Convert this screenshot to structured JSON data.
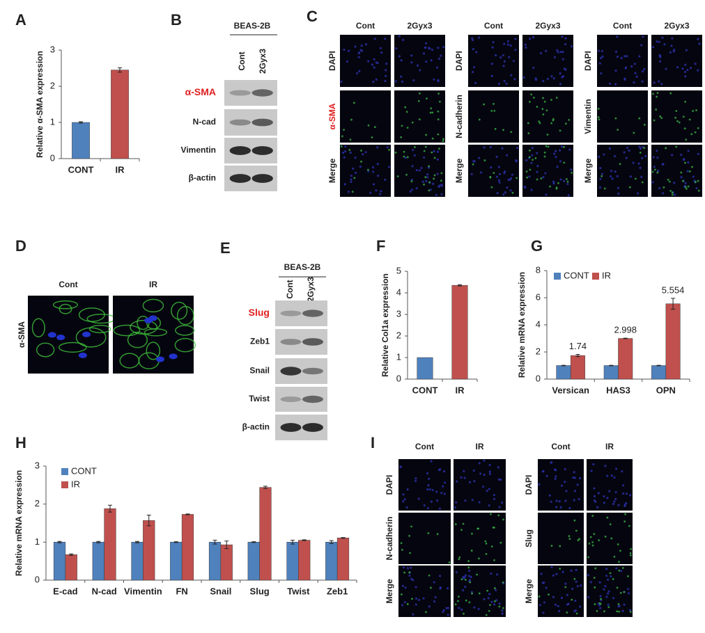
{
  "panel_labels": [
    "A",
    "B",
    "C",
    "D",
    "E",
    "F",
    "G",
    "H",
    "I"
  ],
  "chart_data": [
    {
      "type": "bar",
      "ylabel": "Relative α-SMA expression",
      "categories": [
        "CONT",
        "IR"
      ],
      "values": [
        1,
        2.45
      ],
      "errors": [
        0.02,
        0.06
      ],
      "colors": [
        "#4f81bd",
        "#c0504d"
      ],
      "ylim": [
        0,
        3
      ],
      "yticks": [
        0,
        1,
        2,
        3
      ]
    },
    {
      "type": "bar",
      "ylabel": "Relative Col1a expression",
      "categories": [
        "CONT",
        "IR"
      ],
      "values": [
        1,
        4.35
      ],
      "errors": [
        null,
        0.03
      ],
      "colors": [
        "#4f81bd",
        "#c0504d"
      ],
      "ylim": [
        0,
        5
      ],
      "yticks": [
        0,
        1,
        2,
        3,
        4,
        5
      ]
    },
    {
      "type": "bar",
      "ylabel": "Relative mRNA  expression",
      "categories": [
        "Versican",
        "HAS3",
        "OPN"
      ],
      "series": [
        {
          "name": "CONT",
          "color": "#4f81bd",
          "values": [
            1,
            1,
            1
          ],
          "errors": [
            0.02,
            0.02,
            0.02
          ]
        },
        {
          "name": "IR",
          "color": "#c0504d",
          "values": [
            1.74,
            2.998,
            5.554
          ],
          "errors": [
            0.08,
            0.02,
            0.4
          ],
          "show_values": true
        }
      ],
      "ylim": [
        0,
        8
      ],
      "yticks": [
        0,
        2,
        4,
        6,
        8
      ],
      "legend": "top-left",
      "legend_direction": "horizontal"
    },
    {
      "type": "bar",
      "ylabel": "Relative mRNA expression",
      "categories": [
        "E-cad",
        "N-cad",
        "Vimentin",
        "FN",
        "Snail",
        "Slug",
        "Twist",
        "Zeb1"
      ],
      "series": [
        {
          "name": "CONT",
          "color": "#4f81bd",
          "values": [
            1,
            1,
            1,
            1,
            1,
            1,
            1,
            1
          ],
          "errors": [
            0.02,
            0.02,
            0.02,
            0.01,
            0.05,
            0.01,
            0.05,
            0.04
          ]
        },
        {
          "name": "IR",
          "color": "#c0504d",
          "values": [
            0.67,
            1.88,
            1.57,
            1.73,
            0.93,
            2.44,
            1.05,
            1.11
          ],
          "errors": [
            0.02,
            0.09,
            0.14,
            0.01,
            0.1,
            0.03,
            0.01,
            0.01
          ]
        }
      ],
      "ylim": [
        0,
        3
      ],
      "yticks": [
        0,
        1,
        2,
        3
      ],
      "legend": "top-left",
      "legend_direction": "vertical"
    }
  ],
  "blots": [
    {
      "header": "BEAS-2B",
      "columns": [
        "Cont",
        "2Gyx3"
      ],
      "rows": [
        {
          "label": "α-SMA",
          "color": "#e02020"
        },
        {
          "label": "N-cad"
        },
        {
          "label": "Vimentin"
        },
        {
          "label": "β-actin"
        }
      ]
    },
    {
      "header": "BEAS-2B",
      "columns": [
        "Cont",
        "2Gyx3"
      ],
      "rows": [
        {
          "label": "Slug",
          "color": "#e02020"
        },
        {
          "label": "Zeb1"
        },
        {
          "label": "Snail"
        },
        {
          "label": "Twist"
        },
        {
          "label": "β-actin"
        }
      ]
    }
  ],
  "micrographs": [
    {
      "columns": [
        "Cont",
        "2Gyx3"
      ],
      "rows": [
        {
          "label": "DAPI"
        },
        {
          "label": "α-SMA",
          "color": "#e02020"
        },
        {
          "label": "Merge"
        }
      ]
    },
    {
      "columns": [
        "Cont",
        "2Gyx3"
      ],
      "rows": [
        {
          "label": "DAPI"
        },
        {
          "label": "N-cadherin"
        },
        {
          "label": "Merge"
        }
      ]
    },
    {
      "columns": [
        "Cont",
        "2Gyx3"
      ],
      "rows": [
        {
          "label": "DAPI"
        },
        {
          "label": "Vimentin"
        },
        {
          "label": "Merge"
        }
      ]
    },
    {
      "columns": [
        "Cont",
        "IR"
      ],
      "rows": [
        {
          "label": "α-SMA"
        }
      ]
    },
    {
      "columns": [
        "Cont",
        "IR"
      ],
      "rows": [
        {
          "label": "DAPI"
        },
        {
          "label": "N-cadherin"
        },
        {
          "label": "Merge"
        }
      ]
    },
    {
      "columns": [
        "Cont",
        "IR"
      ],
      "rows": [
        {
          "label": "DAPI"
        },
        {
          "label": "Slug"
        },
        {
          "label": "Merge"
        }
      ]
    }
  ]
}
